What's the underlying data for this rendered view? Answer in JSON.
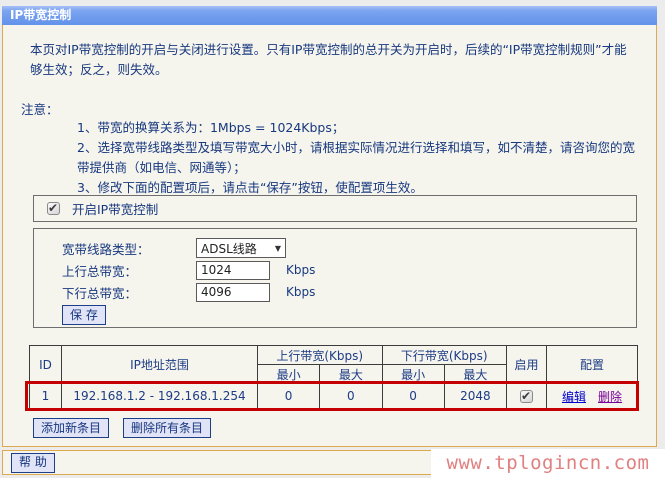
{
  "title_bar": {
    "title": "IP带宽控制"
  },
  "intro": "本页对IP带宽控制的开启与关闭进行设置。只有IP带宽控制的总开关为开启时，后续的“IP带宽控制规则”才能够生效；反之，则失效。",
  "notes": {
    "label": "注意：",
    "items": [
      "1、带宽的换算关系为：1Mbps = 1024Kbps；",
      "2、选择宽带线路类型及填写带宽大小时，请根据实际情况进行选择和填写，如不清楚，请咨询您的宽带提供商（如电信、网通等）；",
      "3、修改下面的配置项后，请点击“保存”按钮，使配置项生效。"
    ]
  },
  "form": {
    "enable_label": "开启IP带宽控制",
    "enable_checked": true,
    "line_type_label": "宽带线路类型：",
    "line_type_value": "ADSL线路",
    "up_label": "上行总带宽：",
    "up_value": "1024",
    "up_unit": "Kbps",
    "down_label": "下行总带宽：",
    "down_value": "4096",
    "down_unit": "Kbps",
    "save_label": "保 存"
  },
  "table": {
    "col_id": "ID",
    "col_ip": "IP地址范围",
    "col_up": "上行带宽(Kbps)",
    "col_down": "下行带宽(Kbps)",
    "col_min1": "最小",
    "col_max1": "最大",
    "col_min2": "最小",
    "col_max2": "最大",
    "col_enable": "启用",
    "col_config": "配置",
    "row": {
      "id": "1",
      "ip_range": "192.168.1.2 - 192.168.1.254",
      "up_min": "0",
      "up_max": "0",
      "down_min": "0",
      "down_max": "2048",
      "enabled": true,
      "edit_label": "编辑",
      "delete_label": "删除"
    }
  },
  "actions": {
    "add_label": "添加新条目",
    "delete_all_label": "删除所有条目"
  },
  "footer": {
    "help_label": "帮 助",
    "watermark": "www.tplogincn.com"
  },
  "colors": {
    "titlebar_blue": "#6292ea",
    "panel_border_orange": "#dfa950",
    "panel_background": "#f5f4ed",
    "text_navy": "#18397f",
    "highlight_red": "#c40000",
    "edit_link_blue": "#0000cc",
    "delete_link_purple": "#7b0099",
    "watermark_red": "#e08080"
  }
}
